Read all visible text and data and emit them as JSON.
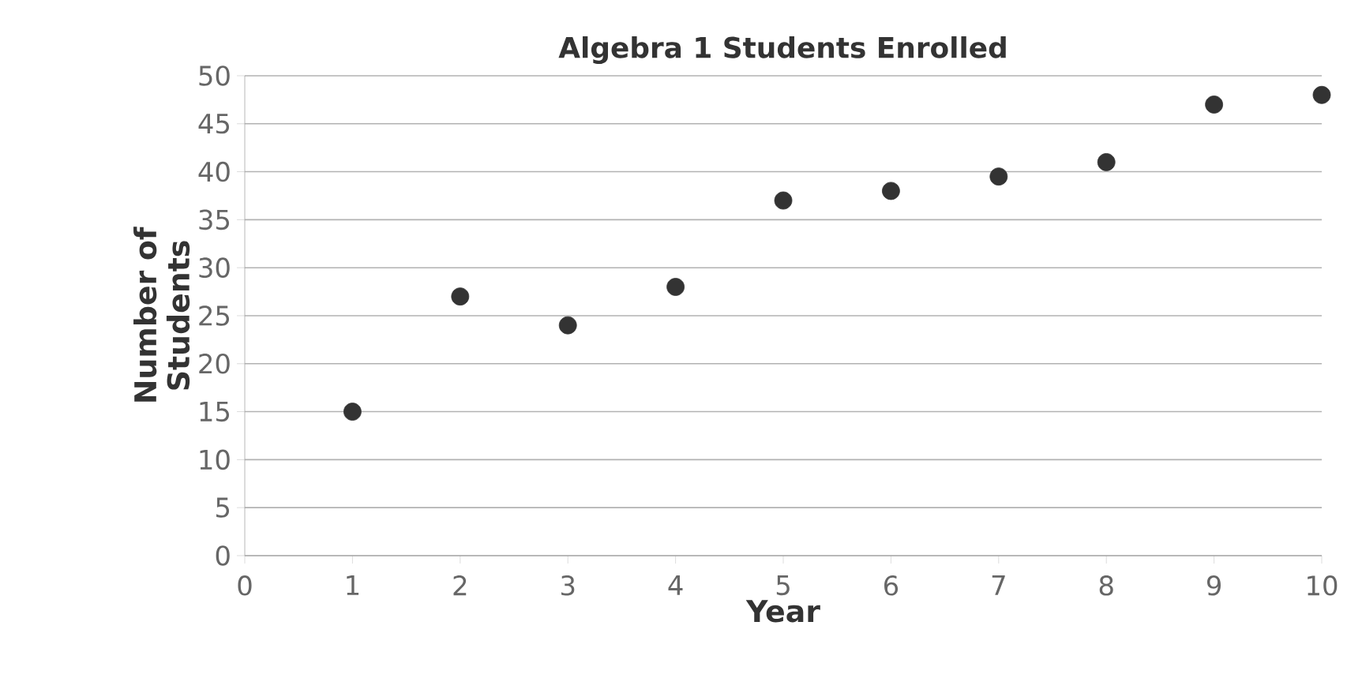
{
  "chart_data": {
    "type": "scatter",
    "title": "Algebra 1 Students Enrolled",
    "xlabel": "Year",
    "ylabel": "Number of Students",
    "x": [
      1,
      2,
      3,
      4,
      5,
      6,
      7,
      8,
      9,
      10
    ],
    "values": [
      15,
      27,
      24,
      28,
      37,
      38,
      39.5,
      41,
      47,
      48
    ],
    "color": "#333333",
    "marker": "circle",
    "grid": "y",
    "xlim": [
      0,
      10
    ],
    "ylim": [
      0,
      50
    ],
    "xticks": [
      0,
      1,
      2,
      3,
      4,
      5,
      6,
      7,
      8,
      9,
      10
    ],
    "yticks": [
      0,
      5,
      10,
      15,
      20,
      25,
      30,
      35,
      40,
      45,
      50
    ]
  }
}
